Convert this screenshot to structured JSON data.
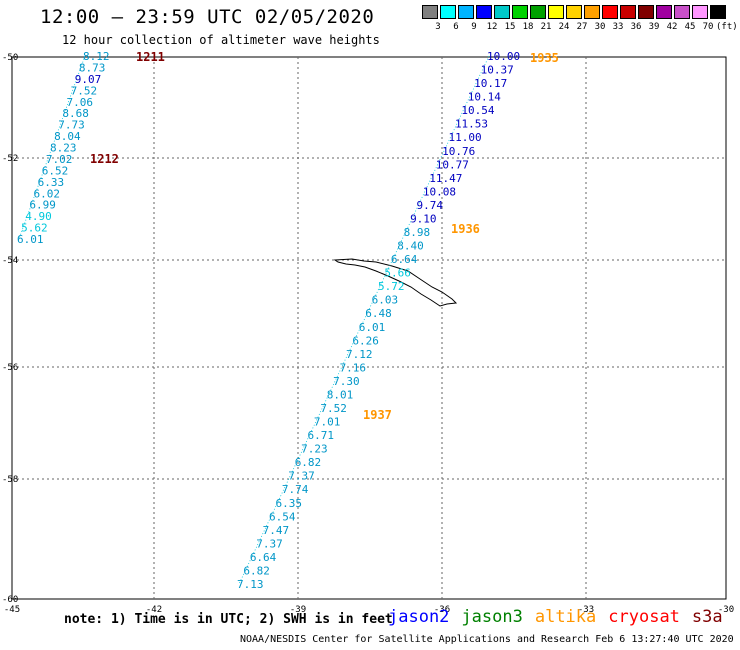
{
  "header": {
    "title": "12:00 – 23:59 UTC 02/05/2020",
    "subtitle": "12 hour collection of altimeter wave heights"
  },
  "legend": {
    "labels": [
      "3",
      "6",
      "9",
      "12",
      "15",
      "18",
      "21",
      "24",
      "27",
      "30",
      "33",
      "36",
      "39",
      "42",
      "45",
      "70",
      "(ft)"
    ],
    "colors": [
      "#808080",
      "#00ffff",
      "#00b4ff",
      "#0000ff",
      "#00c8c8",
      "#00d200",
      "#00a000",
      "#ffff00",
      "#ffd200",
      "#ffa000",
      "#ff0000",
      "#c80000",
      "#800000",
      "#a000a0",
      "#c850c8",
      "#ff96ff",
      "#000000"
    ]
  },
  "axes": {
    "lat_labels": [
      "-50",
      "-52",
      "-54",
      "-56",
      "-58",
      "-60"
    ],
    "lon_labels": [
      "-45",
      "-42",
      "-39",
      "-36",
      "-33",
      "-30"
    ]
  },
  "tracks": [
    {
      "id": "track-1211-1212",
      "points": [
        {
          "v": "8.12",
          "c": "#0096c8"
        },
        {
          "v": "8.73",
          "c": "#0096c8"
        },
        {
          "v": "9.07",
          "c": "#0000c0"
        },
        {
          "v": "7.52",
          "c": "#0096c8"
        },
        {
          "v": "7.06",
          "c": "#0096c8"
        },
        {
          "v": "8.68",
          "c": "#0096c8"
        },
        {
          "v": "7.73",
          "c": "#0096c8"
        },
        {
          "v": "8.04",
          "c": "#0096c8"
        },
        {
          "v": "8.23",
          "c": "#0096c8"
        },
        {
          "v": "7.02",
          "c": "#0096c8"
        },
        {
          "v": "6.52",
          "c": "#0096c8"
        },
        {
          "v": "6.33",
          "c": "#0096c8"
        },
        {
          "v": "6.02",
          "c": "#0096c8"
        },
        {
          "v": "6.99",
          "c": "#0096c8"
        },
        {
          "v": "4.90",
          "c": "#00c8dc"
        },
        {
          "v": "5.62",
          "c": "#00c8dc"
        },
        {
          "v": "6.01",
          "c": "#0096c8"
        }
      ]
    },
    {
      "id": "track-1935-1937",
      "points": [
        {
          "v": "10.00",
          "c": "#0000c0"
        },
        {
          "v": "10.37",
          "c": "#0000c0"
        },
        {
          "v": "10.17",
          "c": "#0000c0"
        },
        {
          "v": "10.14",
          "c": "#0000c0"
        },
        {
          "v": "10.54",
          "c": "#0000c0"
        },
        {
          "v": "11.53",
          "c": "#0000c0"
        },
        {
          "v": "11.00",
          "c": "#0000c0"
        },
        {
          "v": "10.76",
          "c": "#0000c0"
        },
        {
          "v": "10.77",
          "c": "#0000c0"
        },
        {
          "v": "11.47",
          "c": "#0000c0"
        },
        {
          "v": "10.08",
          "c": "#0000c0"
        },
        {
          "v": "9.74",
          "c": "#0000c0"
        },
        {
          "v": "9.10",
          "c": "#0000c0"
        },
        {
          "v": "8.98",
          "c": "#0096c8"
        },
        {
          "v": "8.40",
          "c": "#0096c8"
        },
        {
          "v": "6.64",
          "c": "#0096c8"
        },
        {
          "v": "5.66",
          "c": "#00c8dc"
        },
        {
          "v": "5.72",
          "c": "#00c8dc"
        },
        {
          "v": "6.03",
          "c": "#0096c8"
        },
        {
          "v": "6.48",
          "c": "#0096c8"
        },
        {
          "v": "6.01",
          "c": "#0096c8"
        },
        {
          "v": "6.26",
          "c": "#0096c8"
        },
        {
          "v": "7.12",
          "c": "#0096c8"
        },
        {
          "v": "7.16",
          "c": "#0096c8"
        },
        {
          "v": "7.30",
          "c": "#0096c8"
        },
        {
          "v": "8.01",
          "c": "#0096c8"
        },
        {
          "v": "7.52",
          "c": "#0096c8"
        },
        {
          "v": "7.01",
          "c": "#0096c8"
        },
        {
          "v": "6.71",
          "c": "#0096c8"
        },
        {
          "v": "7.23",
          "c": "#0096c8"
        },
        {
          "v": "6.82",
          "c": "#0096c8"
        },
        {
          "v": "7.37",
          "c": "#0096c8"
        },
        {
          "v": "7.74",
          "c": "#0096c8"
        },
        {
          "v": "6.35",
          "c": "#0096c8"
        },
        {
          "v": "6.54",
          "c": "#0096c8"
        },
        {
          "v": "7.47",
          "c": "#0096c8"
        },
        {
          "v": "7.37",
          "c": "#0096c8"
        },
        {
          "v": "6.64",
          "c": "#0096c8"
        },
        {
          "v": "6.82",
          "c": "#0096c8"
        },
        {
          "v": "7.13",
          "c": "#0096c8"
        }
      ]
    }
  ],
  "time_labels": [
    {
      "text": "1211",
      "c": "#800000"
    },
    {
      "text": "1212",
      "c": "#800000"
    },
    {
      "text": "1935",
      "c": "#ff9600"
    },
    {
      "text": "1936",
      "c": "#ff9600"
    },
    {
      "text": "1937",
      "c": "#ff9600"
    }
  ],
  "footer": {
    "note": "note: 1) Time is in UTC; 2) SWH is in feet",
    "satellites": [
      {
        "name": "jason2",
        "color": "#0000ff"
      },
      {
        "name": "jason3",
        "color": "#008000"
      },
      {
        "name": "altika",
        "color": "#ff9600"
      },
      {
        "name": "cryosat",
        "color": "#ff0000"
      },
      {
        "name": "s3a",
        "color": "#800000"
      }
    ],
    "credit": "NOAA/NESDIS Center for Satellite Applications and Research   Feb  6 13:27:40 UTC 2020"
  }
}
